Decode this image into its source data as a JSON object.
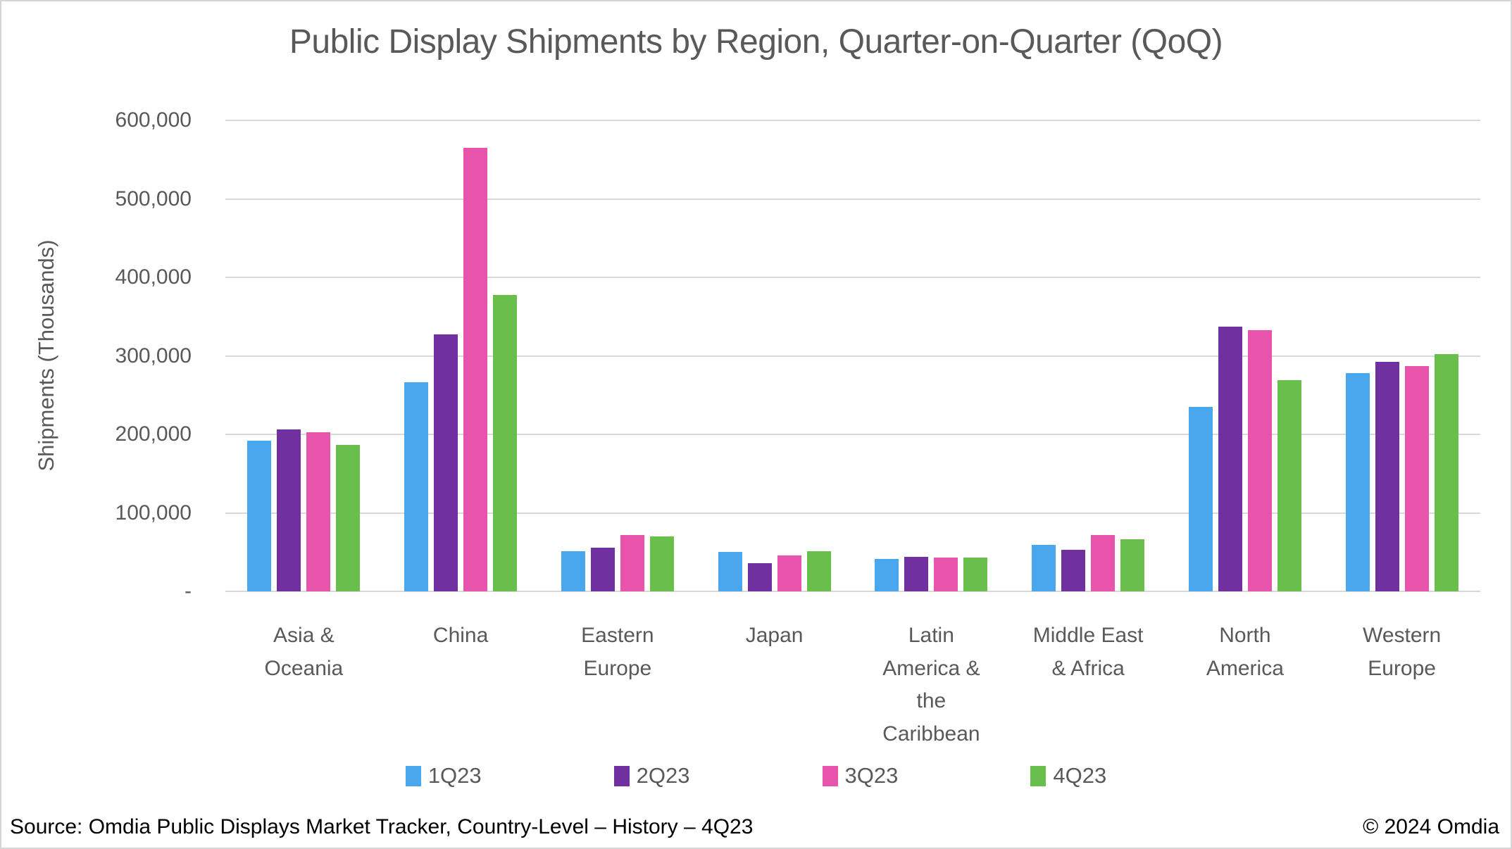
{
  "chart_data": {
    "type": "bar",
    "title": "Public Display Shipments by Region, Quarter-on-Quarter (QoQ)",
    "xlabel": "",
    "ylabel": "Shipments (Thousands)",
    "ylim": [
      0,
      600000
    ],
    "ytick_step": 100000,
    "ytick_labels": [
      "-",
      "100,000",
      "200,000",
      "300,000",
      "400,000",
      "500,000",
      "600,000"
    ],
    "grid": true,
    "legend_position": "bottom",
    "categories": [
      "Asia &\nOceania",
      "China",
      "Eastern\nEurope",
      "Japan",
      "Latin\nAmerica &\nthe\nCaribbean",
      "Middle East\n& Africa",
      "North\nAmerica",
      "Western\nEurope"
    ],
    "series": [
      {
        "name": "1Q23",
        "color": "#4AA7EE",
        "values": [
          192000,
          266000,
          51000,
          50000,
          41000,
          59000,
          235000,
          278000
        ]
      },
      {
        "name": "2Q23",
        "color": "#7030A0",
        "values": [
          206000,
          327000,
          56000,
          36000,
          44000,
          53000,
          337000,
          292000
        ]
      },
      {
        "name": "3Q23",
        "color": "#E853AC",
        "values": [
          203000,
          565000,
          72000,
          46000,
          43000,
          72000,
          333000,
          287000
        ]
      },
      {
        "name": "4Q23",
        "color": "#6ABE4B",
        "values": [
          187000,
          378000,
          70000,
          51000,
          43000,
          66000,
          269000,
          302000
        ]
      }
    ]
  },
  "colors": {
    "text": "#595959",
    "gridline": "#D9D9D9",
    "axis_line": "#D9D9D9",
    "footer_text": "#000000"
  },
  "footer": {
    "source": "Source: Omdia Public Displays Market Tracker, Country-Level – History – 4Q23",
    "copyright": "© 2024 Omdia"
  }
}
